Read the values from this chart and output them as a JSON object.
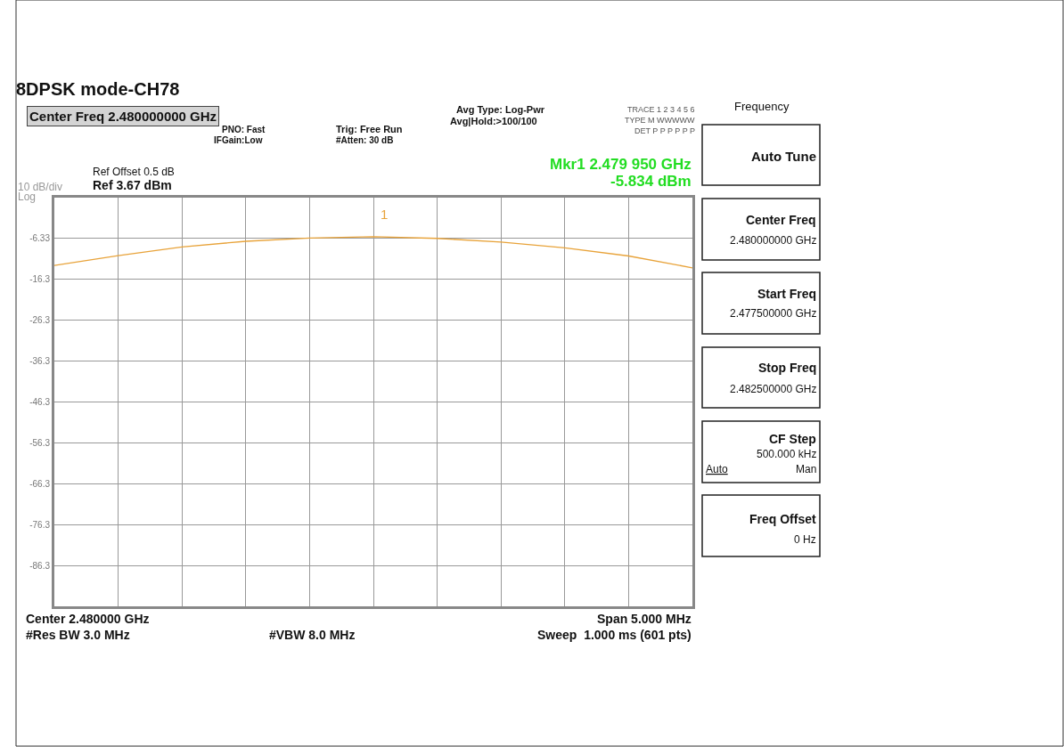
{
  "chart_data": {
    "type": "line",
    "title": "8DPSK mode-CH78",
    "categories": [
      null,
      null,
      null,
      null,
      null,
      null,
      null,
      null,
      null,
      null,
      null
    ],
    "series": [
      {
        "color": "#e8a33a",
        "values": [
          -12.9,
          -10.5,
          -8.4,
          -7.0,
          -6.2,
          -5.9,
          -6.3,
          -7.2,
          -8.6,
          -10.6,
          -13.5
        ]
      }
    ],
    "ylim": [
      -96.33,
      3.67
    ],
    "yticks": [
      {
        "value": 3.67,
        "label": null
      },
      {
        "value": -6.33,
        "label": "-6.33"
      },
      {
        "value": -16.33,
        "label": "-16.3"
      },
      {
        "value": -26.33,
        "label": "-26.3"
      },
      {
        "value": -36.33,
        "label": "-36.3"
      },
      {
        "value": -46.33,
        "label": "-46.3"
      },
      {
        "value": -56.33,
        "label": "-56.3"
      },
      {
        "value": -66.33,
        "label": "-66.3"
      },
      {
        "value": -76.33,
        "label": "-76.3"
      },
      {
        "value": -86.33,
        "label": "-86.3"
      },
      {
        "value": -96.33,
        "label": null
      }
    ],
    "tick_labels": "y",
    "grid": true,
    "line_style": "solid",
    "annotations": [
      "Center Freq 2.480000000 GHz",
      "PNO: Fast",
      "IFGain:Low",
      "Trig: Free Run",
      "#Atten: 30 dB",
      "Avg Type: Log-Pwr",
      "Avg|Hold:>100/100",
      "TRACE 1 2 3 4 5 6",
      "TYPE M WWWWW",
      "DET P P P P P P",
      "Mkr1 2.479 950 GHz",
      "-5.834 dBm",
      "Ref Offset 0.5 dB",
      "Ref 3.67 dBm",
      "10 dB/div",
      "Log",
      "Center 2.480000 GHz",
      "Span 5.000 MHz",
      "#Res BW 3.0 MHz",
      "#VBW 8.0 MHz",
      "Sweep  1.000 ms (601 pts)",
      "Frequency",
      "Auto Tune",
      "Center Freq",
      "2.480000000 GHz",
      "Start Freq",
      "2.477500000 GHz",
      "Stop Freq",
      "2.482500000 GHz",
      "CF Step",
      "500.000 kHz",
      "Auto",
      "Man",
      "Freq Offset",
      "0 Hz",
      "1"
    ]
  }
}
